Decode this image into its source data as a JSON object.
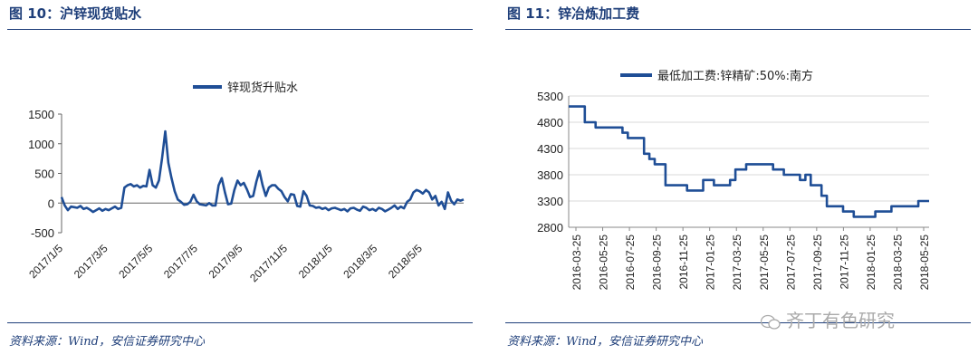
{
  "figures": [
    {
      "title": "图 10：沪锌现货贴水",
      "source": "资料来源：Wind，安信证券研究中心"
    },
    {
      "title": "图 11：锌冶炼加工费",
      "source": "资料来源：Wind，安信证券研究中心"
    }
  ],
  "watermark": "齐丁有色研究",
  "colors": {
    "line": "#1f4e96",
    "title": "#1f3f7a",
    "grid": "#d9d9d9"
  },
  "chart_data": [
    {
      "type": "line",
      "title": "",
      "series": [
        {
          "name": "锌现货升贴水",
          "values": [
            100,
            -40,
            -120,
            -60,
            -70,
            -80,
            -50,
            -100,
            -80,
            -110,
            -150,
            -120,
            -90,
            -130,
            -100,
            -120,
            -90,
            -60,
            -100,
            -80,
            260,
            300,
            320,
            280,
            300,
            260,
            290,
            280,
            560,
            300,
            260,
            380,
            760,
            1210,
            680,
            420,
            200,
            60,
            20,
            -30,
            -20,
            20,
            140,
            30,
            -20,
            -30,
            -40,
            0,
            -40,
            -40,
            300,
            420,
            180,
            -20,
            -10,
            220,
            380,
            300,
            340,
            230,
            100,
            120,
            360,
            540,
            300,
            120,
            260,
            300,
            300,
            240,
            200,
            100,
            30,
            150,
            140,
            -50,
            -60,
            200,
            120,
            -40,
            -50,
            -80,
            -70,
            -100,
            -80,
            -120,
            -90,
            -80,
            -100,
            -120,
            -100,
            -140,
            -90,
            -80,
            -110,
            -130,
            -60,
            -80,
            -120,
            -100,
            -130,
            -80,
            -100,
            -140,
            -110,
            -80,
            -40,
            -100,
            -60,
            -90,
            20,
            60,
            180,
            220,
            200,
            160,
            220,
            180,
            60,
            120,
            -40,
            20,
            -100,
            180,
            40,
            -20,
            60,
            40,
            60
          ]
        }
      ],
      "x_tick_labels": [
        "2017/1/5",
        "2017/3/5",
        "2017/5/5",
        "2017/7/5",
        "2017/9/5",
        "2017/11/5",
        "2018/1/5",
        "2018/3/5",
        "2018/5/5"
      ],
      "y_tick_labels": [
        "1500",
        "1000",
        "500",
        "0",
        "-500"
      ],
      "ylim": [
        -500,
        1500
      ],
      "x_range": [
        "2017/1/5",
        "2018/6/30"
      ],
      "grid": false,
      "legend_position": "top-center"
    },
    {
      "type": "line",
      "title": "",
      "series": [
        {
          "name": "最低加工费:锌精矿:50%:南方",
          "values": [
            5100,
            5100,
            5100,
            4800,
            4800,
            4700,
            4700,
            4700,
            4700,
            4700,
            4600,
            4500,
            4500,
            4500,
            4200,
            4100,
            4000,
            4000,
            3600,
            3600,
            3600,
            3600,
            3500,
            3500,
            3500,
            3700,
            3700,
            3600,
            3600,
            3600,
            3700,
            3900,
            3900,
            4000,
            4000,
            4000,
            4000,
            4000,
            3900,
            3900,
            3800,
            3800,
            3800,
            3700,
            3800,
            3600,
            3600,
            3400,
            3200,
            3200,
            3200,
            3100,
            3100,
            3000,
            3000,
            3000,
            3000,
            3100,
            3100,
            3100,
            3200,
            3200,
            3200,
            3200,
            3200,
            3300,
            3300
          ]
        }
      ],
      "x_tick_labels": [
        "2016-03-25",
        "2016-05-25",
        "2016-07-25",
        "2016-09-25",
        "2016-11-25",
        "2017-01-25",
        "2017-03-25",
        "2017-05-25",
        "2017-07-25",
        "2017-09-25",
        "2017-11-25",
        "2018-01-25",
        "2018-03-25",
        "2018-05-25"
      ],
      "y_tick_labels": [
        "5300",
        "4800",
        "4300",
        "3800",
        "3300",
        "2800"
      ],
      "ylim": [
        2800,
        5300
      ],
      "x_range": [
        "2016-03-25",
        "2018-06-25"
      ],
      "grid": true,
      "legend_position": "top-center"
    }
  ]
}
